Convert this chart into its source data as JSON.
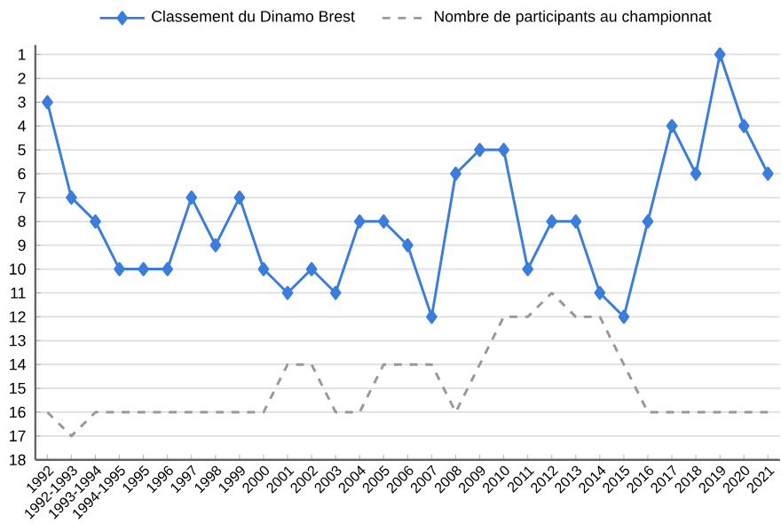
{
  "chart_data": {
    "type": "line",
    "categories": [
      "1992",
      "1992-1993",
      "1993-1994",
      "1994-1995",
      "1995",
      "1996",
      "1997",
      "1998",
      "1999",
      "2000",
      "2001",
      "2002",
      "2003",
      "2004",
      "2005",
      "2006",
      "2007",
      "2008",
      "2009",
      "2010",
      "2011",
      "2012",
      "2013",
      "2014",
      "2015",
      "2016",
      "2017",
      "2018",
      "2019",
      "2020",
      "2021"
    ],
    "series": [
      {
        "name": "Classement du Dinamo Brest",
        "color": "#3b7ddd",
        "marker": "diamond",
        "line_style": "solid",
        "values": [
          3,
          7,
          8,
          10,
          10,
          10,
          7,
          9,
          7,
          10,
          11,
          10,
          11,
          8,
          8,
          9,
          12,
          6,
          5,
          5,
          10,
          8,
          8,
          11,
          12,
          8,
          4,
          6,
          1,
          4,
          6
        ]
      },
      {
        "name": "Nombre de participants au championnat",
        "color": "#999999",
        "marker": "none",
        "line_style": "dashed",
        "values": [
          16,
          17,
          16,
          16,
          16,
          16,
          16,
          16,
          16,
          16,
          14,
          14,
          16,
          16,
          14,
          14,
          14,
          16,
          14,
          12,
          12,
          11,
          12,
          12,
          14,
          16,
          16,
          16,
          16,
          16,
          16
        ]
      }
    ],
    "ylim": [
      18,
      0.6
    ],
    "yticks": [
      1,
      2,
      3,
      4,
      5,
      6,
      7,
      8,
      9,
      10,
      11,
      12,
      13,
      14,
      15,
      16,
      17,
      18
    ],
    "grid": "y",
    "legend": "top"
  }
}
